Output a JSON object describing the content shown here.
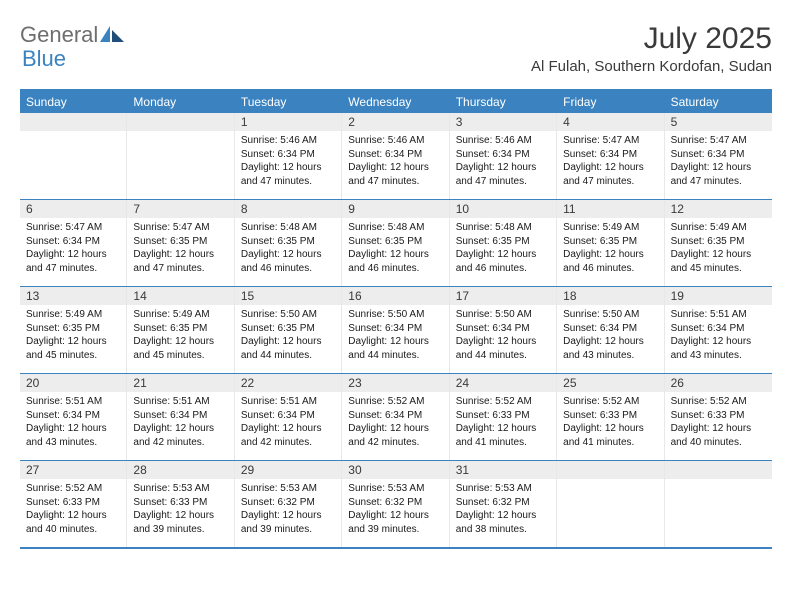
{
  "brand": {
    "word1": "General",
    "word2": "Blue"
  },
  "title": "July 2025",
  "location": "Al Fulah, Southern Kordofan, Sudan",
  "headerColor": "#3b83c0",
  "days": [
    "Sunday",
    "Monday",
    "Tuesday",
    "Wednesday",
    "Thursday",
    "Friday",
    "Saturday"
  ],
  "weeks": [
    [
      null,
      null,
      {
        "n": "1",
        "sr": "5:46 AM",
        "ss": "6:34 PM",
        "dl": "12 hours and 47 minutes."
      },
      {
        "n": "2",
        "sr": "5:46 AM",
        "ss": "6:34 PM",
        "dl": "12 hours and 47 minutes."
      },
      {
        "n": "3",
        "sr": "5:46 AM",
        "ss": "6:34 PM",
        "dl": "12 hours and 47 minutes."
      },
      {
        "n": "4",
        "sr": "5:47 AM",
        "ss": "6:34 PM",
        "dl": "12 hours and 47 minutes."
      },
      {
        "n": "5",
        "sr": "5:47 AM",
        "ss": "6:34 PM",
        "dl": "12 hours and 47 minutes."
      }
    ],
    [
      {
        "n": "6",
        "sr": "5:47 AM",
        "ss": "6:34 PM",
        "dl": "12 hours and 47 minutes."
      },
      {
        "n": "7",
        "sr": "5:47 AM",
        "ss": "6:35 PM",
        "dl": "12 hours and 47 minutes."
      },
      {
        "n": "8",
        "sr": "5:48 AM",
        "ss": "6:35 PM",
        "dl": "12 hours and 46 minutes."
      },
      {
        "n": "9",
        "sr": "5:48 AM",
        "ss": "6:35 PM",
        "dl": "12 hours and 46 minutes."
      },
      {
        "n": "10",
        "sr": "5:48 AM",
        "ss": "6:35 PM",
        "dl": "12 hours and 46 minutes."
      },
      {
        "n": "11",
        "sr": "5:49 AM",
        "ss": "6:35 PM",
        "dl": "12 hours and 46 minutes."
      },
      {
        "n": "12",
        "sr": "5:49 AM",
        "ss": "6:35 PM",
        "dl": "12 hours and 45 minutes."
      }
    ],
    [
      {
        "n": "13",
        "sr": "5:49 AM",
        "ss": "6:35 PM",
        "dl": "12 hours and 45 minutes."
      },
      {
        "n": "14",
        "sr": "5:49 AM",
        "ss": "6:35 PM",
        "dl": "12 hours and 45 minutes."
      },
      {
        "n": "15",
        "sr": "5:50 AM",
        "ss": "6:35 PM",
        "dl": "12 hours and 44 minutes."
      },
      {
        "n": "16",
        "sr": "5:50 AM",
        "ss": "6:34 PM",
        "dl": "12 hours and 44 minutes."
      },
      {
        "n": "17",
        "sr": "5:50 AM",
        "ss": "6:34 PM",
        "dl": "12 hours and 44 minutes."
      },
      {
        "n": "18",
        "sr": "5:50 AM",
        "ss": "6:34 PM",
        "dl": "12 hours and 43 minutes."
      },
      {
        "n": "19",
        "sr": "5:51 AM",
        "ss": "6:34 PM",
        "dl": "12 hours and 43 minutes."
      }
    ],
    [
      {
        "n": "20",
        "sr": "5:51 AM",
        "ss": "6:34 PM",
        "dl": "12 hours and 43 minutes."
      },
      {
        "n": "21",
        "sr": "5:51 AM",
        "ss": "6:34 PM",
        "dl": "12 hours and 42 minutes."
      },
      {
        "n": "22",
        "sr": "5:51 AM",
        "ss": "6:34 PM",
        "dl": "12 hours and 42 minutes."
      },
      {
        "n": "23",
        "sr": "5:52 AM",
        "ss": "6:34 PM",
        "dl": "12 hours and 42 minutes."
      },
      {
        "n": "24",
        "sr": "5:52 AM",
        "ss": "6:33 PM",
        "dl": "12 hours and 41 minutes."
      },
      {
        "n": "25",
        "sr": "5:52 AM",
        "ss": "6:33 PM",
        "dl": "12 hours and 41 minutes."
      },
      {
        "n": "26",
        "sr": "5:52 AM",
        "ss": "6:33 PM",
        "dl": "12 hours and 40 minutes."
      }
    ],
    [
      {
        "n": "27",
        "sr": "5:52 AM",
        "ss": "6:33 PM",
        "dl": "12 hours and 40 minutes."
      },
      {
        "n": "28",
        "sr": "5:53 AM",
        "ss": "6:33 PM",
        "dl": "12 hours and 39 minutes."
      },
      {
        "n": "29",
        "sr": "5:53 AM",
        "ss": "6:32 PM",
        "dl": "12 hours and 39 minutes."
      },
      {
        "n": "30",
        "sr": "5:53 AM",
        "ss": "6:32 PM",
        "dl": "12 hours and 39 minutes."
      },
      {
        "n": "31",
        "sr": "5:53 AM",
        "ss": "6:32 PM",
        "dl": "12 hours and 38 minutes."
      },
      null,
      null
    ]
  ],
  "labels": {
    "sunrise": "Sunrise:",
    "sunset": "Sunset:",
    "daylight": "Daylight:"
  }
}
